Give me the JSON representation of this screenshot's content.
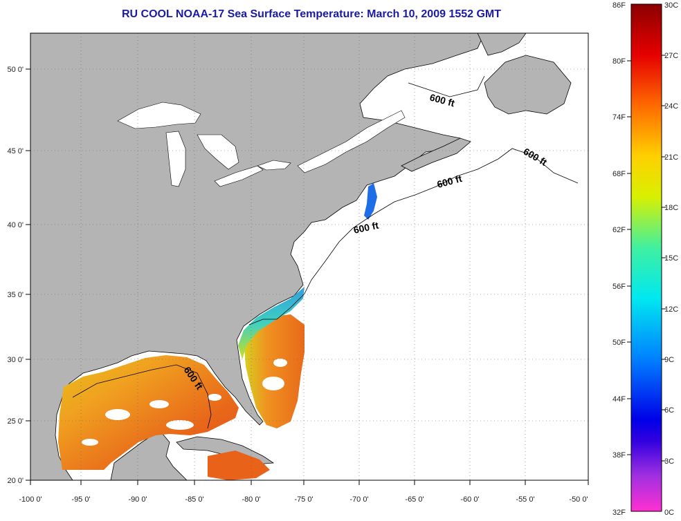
{
  "title": "RU COOL  NOAA-17  Sea Surface Temperature:  March 10, 2009 1552 GMT",
  "map": {
    "lon_ticks": [
      "-100 0'",
      "-95 0'",
      "-90 0'",
      "-85 0'",
      "-80 0'",
      "-75 0'",
      "-70 0'",
      "-65 0'",
      "-60 0'",
      "-55 0'",
      "-50 0'"
    ],
    "lat_ticks": [
      "50 0'",
      "45 0'",
      "40 0'",
      "35 0'",
      "30 0'",
      "25 0'",
      "20 0'"
    ],
    "contour_labels": [
      "600 ft",
      "600 ft",
      "600 ft",
      "600 ft",
      "600 ft"
    ],
    "colors": {
      "land": "#b4b4b4",
      "water": "#ffffff",
      "frame": "#000000"
    }
  },
  "colorbar": {
    "f_labels": [
      "86F",
      "80F",
      "74F",
      "68F",
      "62F",
      "56F",
      "50F",
      "44F",
      "38F",
      "32F"
    ],
    "c_labels": [
      "30C",
      "27C",
      "24C",
      "21C",
      "18C",
      "15C",
      "12C",
      "9C",
      "6C",
      "3C",
      "0C"
    ]
  }
}
